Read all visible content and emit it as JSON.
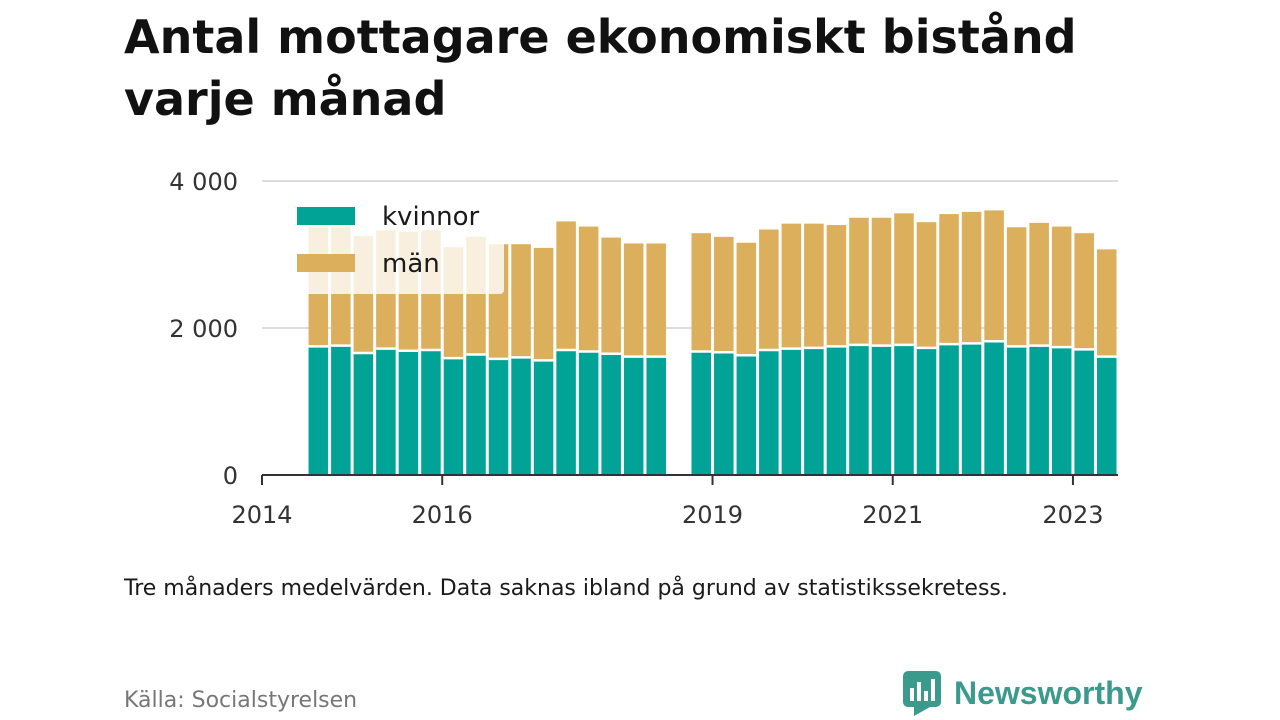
{
  "header": {
    "title": "Antal mottagare ekonomiskt bistånd varje månad"
  },
  "footer": {
    "note": "Tre månaders medelvärden. Data saknas ibland på grund av statistikssekretess.",
    "source": "Källa: Socialstyrelsen",
    "brand": "Newsworthy",
    "brand_icon": "newsworthy-logo-icon",
    "brand_color": "#3a9a8c"
  },
  "chart_data": {
    "type": "bar",
    "stacked": true,
    "title": "",
    "xlabel": "",
    "ylabel": "",
    "ylim": [
      0,
      4000
    ],
    "yticks": [
      0,
      2000,
      4000
    ],
    "ytick_labels": [
      "0",
      "2 000",
      "4 000"
    ],
    "xlim": [
      "2014-01",
      "2023-07"
    ],
    "xticks": [
      "2014-01",
      "2016-01",
      "2019-01",
      "2021-01",
      "2023-01"
    ],
    "xtick_labels": [
      "2014",
      "2016",
      "2019",
      "2021",
      "2023"
    ],
    "grid": "horizontal",
    "legend_position": "top-left",
    "colors": {
      "kvinnor": "#00a396",
      "män": "#dcaf5d"
    },
    "x": [
      "2014-07",
      "2014-10",
      "2015-01",
      "2015-04",
      "2015-07",
      "2015-10",
      "2016-01",
      "2016-04",
      "2016-07",
      "2016-10",
      "2017-01",
      "2017-04",
      "2017-07",
      "2017-10",
      "2018-01",
      "2018-04",
      "2018-10",
      "2019-01",
      "2019-04",
      "2019-07",
      "2019-10",
      "2020-01",
      "2020-04",
      "2020-07",
      "2020-10",
      "2021-01",
      "2021-04",
      "2021-07",
      "2021-10",
      "2022-01",
      "2022-04",
      "2022-07",
      "2022-10",
      "2023-01",
      "2023-04"
    ],
    "series": [
      {
        "name": "kvinnor",
        "values": [
          1750,
          1760,
          1660,
          1720,
          1690,
          1700,
          1590,
          1640,
          1580,
          1600,
          1560,
          1700,
          1680,
          1650,
          1610,
          1610,
          1680,
          1670,
          1630,
          1700,
          1720,
          1730,
          1750,
          1770,
          1760,
          1770,
          1730,
          1780,
          1790,
          1820,
          1750,
          1760,
          1740,
          1710,
          1610
        ]
      },
      {
        "name": "män",
        "values": [
          1630,
          1620,
          1590,
          1610,
          1620,
          1630,
          1510,
          1600,
          1560,
          1540,
          1530,
          1750,
          1700,
          1580,
          1540,
          1540,
          1610,
          1570,
          1530,
          1640,
          1700,
          1690,
          1650,
          1730,
          1740,
          1790,
          1710,
          1770,
          1790,
          1780,
          1620,
          1670,
          1640,
          1580,
          1460
        ]
      }
    ]
  }
}
